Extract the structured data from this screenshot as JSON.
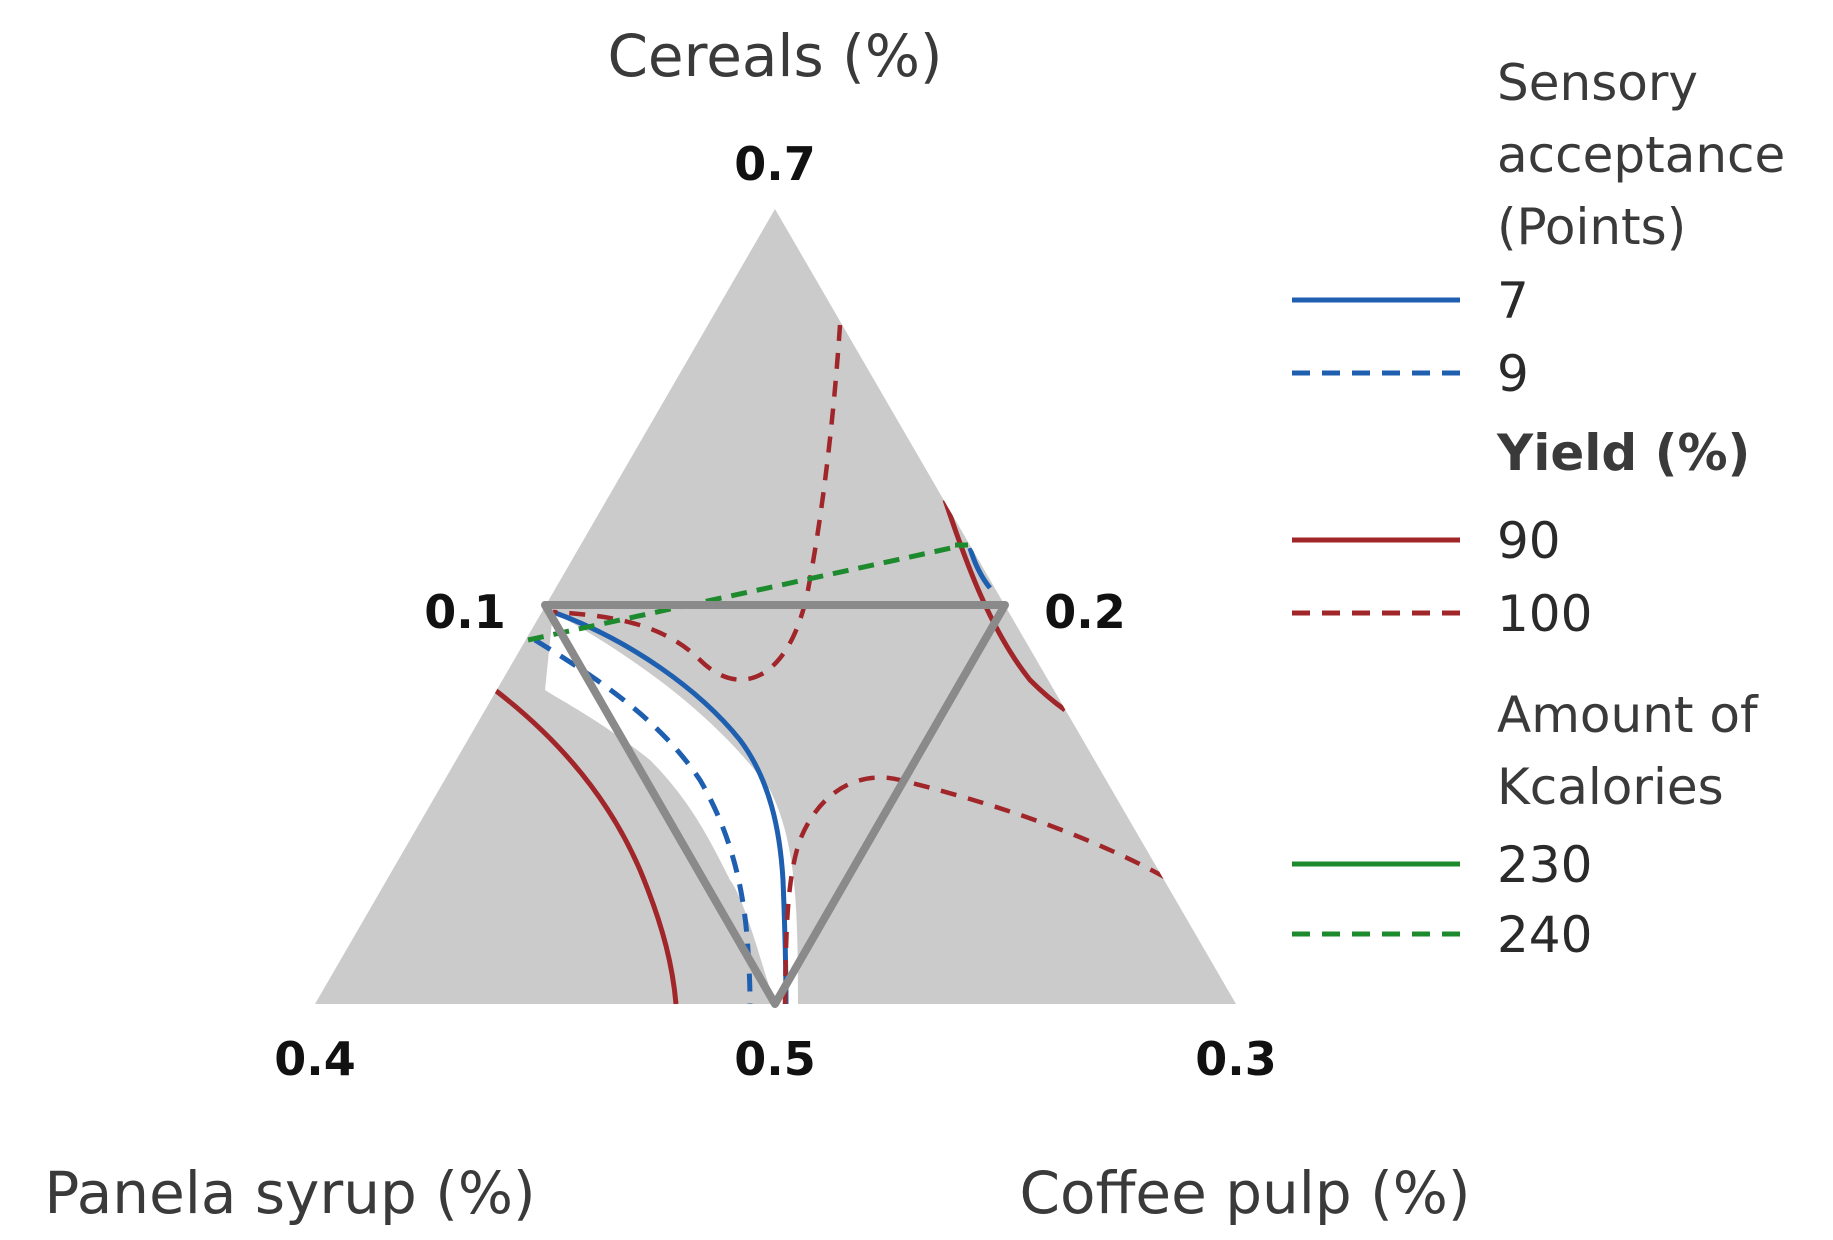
{
  "chart_data": {
    "type": "ternary-contour",
    "axes": {
      "top": {
        "title": "Cereals (%)",
        "vertex_value": "0.7"
      },
      "left": {
        "title": "Panela syrup  (%)",
        "vertex_value": "0.4"
      },
      "right": {
        "title": "Coffee pulp (%)",
        "vertex_value": "0.3"
      }
    },
    "subregion_ticks": {
      "left_edge_mid": "0.1",
      "right_edge_mid": "0.2",
      "bottom_mid": "0.5"
    },
    "legend": {
      "groups": [
        {
          "title_lines": [
            "Sensory",
            "acceptance",
            "(Points)"
          ],
          "bold": false,
          "color": "#1f5fb0",
          "entries": [
            {
              "label": "7",
              "style": "solid"
            },
            {
              "label": "9",
              "style": "dashed"
            }
          ]
        },
        {
          "title_lines": [
            "Yield (%)"
          ],
          "bold": true,
          "color": "#a0262a",
          "entries": [
            {
              "label": "90",
              "style": "solid"
            },
            {
              "label": "100",
              "style": "dashed"
            }
          ]
        },
        {
          "title_lines": [
            "Amount of",
            "Kcalories"
          ],
          "bold": false,
          "color": "#1e8a2e",
          "entries": [
            {
              "label": "230",
              "style": "solid"
            },
            {
              "label": "240",
              "style": "dashed"
            }
          ]
        }
      ]
    },
    "colors": {
      "infeasible_fill": "#cbcbcb",
      "feasible_fill": "#ffffff",
      "subregion_line": "#8a8a8a"
    }
  }
}
